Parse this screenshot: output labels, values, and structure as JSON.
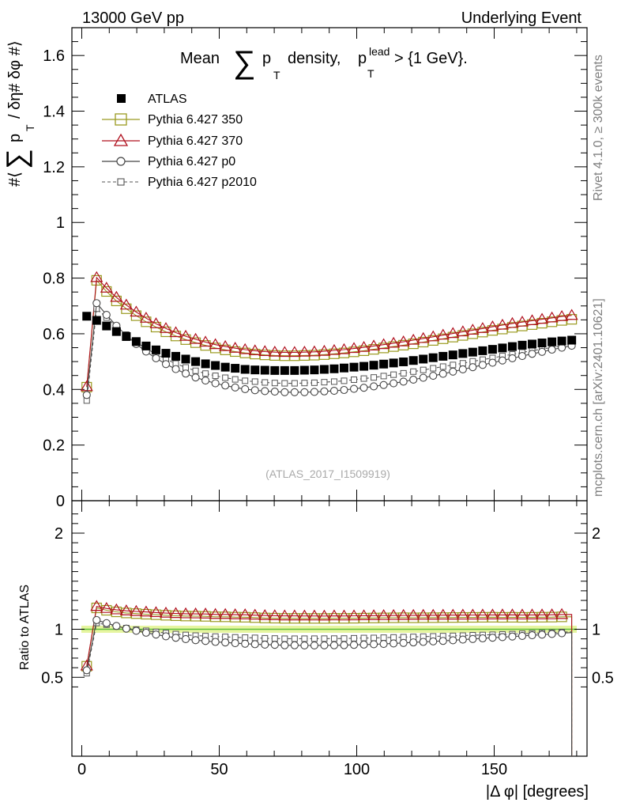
{
  "header": {
    "left": "13000 GeV pp",
    "right": "Underlying Event"
  },
  "side": {
    "rivet": "Rivet 4.1.0, ≥ 300k events",
    "mcplots": "mcplots.cern.ch [arXiv:2401.10621]"
  },
  "chart_data": {
    "type": "line",
    "title": "Mean ∑ p_T density, p_T^lead > {1 GeV}.",
    "title_parts": {
      "pre": "Mean",
      "sum": "∑",
      "p": "p",
      "sub_t": "T",
      "mid": "density,",
      "sup_lead": "lead",
      "end": "> {1 GeV}."
    },
    "ylabel": "#⟨ ∑ p_T / δη# δφ #⟩",
    "ylabel_parts": {
      "a": "#⟨",
      "sum": "∑",
      "p": "p",
      "sub_t": "T",
      "b": "/ δη# δφ #⟩"
    },
    "ratio_ylabel": "Ratio to ATLAS",
    "xlabel": "|Δ φ| [degrees]",
    "reference_label": "(ATLAS_2017_I1509919)",
    "xlim": [
      -4,
      184
    ],
    "ylim": [
      0,
      1.7
    ],
    "ratio_ylim": [
      0.35,
      2.3
    ],
    "x_ticks": [
      "0",
      "50",
      "100",
      "150"
    ],
    "y_ticks": [
      "0",
      "0.2",
      "0.4",
      "0.6",
      "0.8",
      "1",
      "1.2",
      "1.4",
      "1.6"
    ],
    "ratio_ticks": [
      "0.5",
      "1",
      "2"
    ],
    "legend": [
      {
        "key": "atlas",
        "label": "ATLAS"
      },
      {
        "key": "p350",
        "label": "Pythia 6.427 350"
      },
      {
        "key": "p370",
        "label": "Pythia 6.427 370"
      },
      {
        "key": "p0",
        "label": "Pythia 6.427 p0"
      },
      {
        "key": "p2010",
        "label": "Pythia 6.427 p2010"
      }
    ],
    "series_styles": {
      "atlas": {
        "color": "#000000",
        "marker": "square-filled",
        "line": "none"
      },
      "p350": {
        "color": "#9a9a20",
        "marker": "square-open",
        "line": "solid"
      },
      "p370": {
        "color": "#b0101e",
        "marker": "triangle-open",
        "line": "solid"
      },
      "p0": {
        "color": "#444444",
        "marker": "circle-open",
        "line": "solid"
      },
      "p2010": {
        "color": "#555555",
        "marker": "square-open-small",
        "line": "dashed"
      }
    },
    "x": [
      1.8,
      5.4,
      9.0,
      12.6,
      16.2,
      19.8,
      23.4,
      27.0,
      30.6,
      34.2,
      37.8,
      41.4,
      45.0,
      48.6,
      52.2,
      55.8,
      59.4,
      63.0,
      66.6,
      70.2,
      73.8,
      77.4,
      81.0,
      84.6,
      88.2,
      91.8,
      95.4,
      99.0,
      102.6,
      106.2,
      109.8,
      113.4,
      117.0,
      120.6,
      124.2,
      127.8,
      131.4,
      135.0,
      138.6,
      142.2,
      145.8,
      149.4,
      153.0,
      156.6,
      160.2,
      163.8,
      167.4,
      171.0,
      174.6,
      178.2
    ],
    "series": [
      {
        "name": "ATLAS",
        "values": [
          0.663,
          0.648,
          0.628,
          0.608,
          0.59,
          0.572,
          0.556,
          0.542,
          0.53,
          0.519,
          0.509,
          0.5,
          0.492,
          0.486,
          0.48,
          0.476,
          0.472,
          0.47,
          0.469,
          0.468,
          0.468,
          0.468,
          0.469,
          0.47,
          0.472,
          0.474,
          0.477,
          0.48,
          0.483,
          0.487,
          0.491,
          0.495,
          0.499,
          0.504,
          0.509,
          0.514,
          0.519,
          0.524,
          0.529,
          0.534,
          0.539,
          0.544,
          0.549,
          0.554,
          0.559,
          0.563,
          0.567,
          0.571,
          0.574,
          0.577
        ]
      },
      {
        "name": "Pythia 6.427 350",
        "values": [
          0.408,
          0.792,
          0.752,
          0.718,
          0.69,
          0.665,
          0.643,
          0.624,
          0.607,
          0.592,
          0.579,
          0.568,
          0.558,
          0.549,
          0.542,
          0.536,
          0.531,
          0.527,
          0.524,
          0.522,
          0.521,
          0.521,
          0.522,
          0.523,
          0.525,
          0.528,
          0.531,
          0.535,
          0.539,
          0.544,
          0.549,
          0.554,
          0.559,
          0.564,
          0.57,
          0.576,
          0.582,
          0.588,
          0.594,
          0.6,
          0.606,
          0.612,
          0.617,
          0.623,
          0.628,
          0.633,
          0.638,
          0.643,
          0.648,
          0.652
        ]
      },
      {
        "name": "Pythia 6.427 370",
        "values": [
          0.41,
          0.802,
          0.764,
          0.731,
          0.703,
          0.678,
          0.656,
          0.636,
          0.619,
          0.604,
          0.591,
          0.58,
          0.57,
          0.561,
          0.554,
          0.548,
          0.543,
          0.539,
          0.536,
          0.534,
          0.533,
          0.533,
          0.534,
          0.535,
          0.537,
          0.54,
          0.543,
          0.547,
          0.551,
          0.556,
          0.561,
          0.566,
          0.571,
          0.577,
          0.583,
          0.589,
          0.595,
          0.601,
          0.607,
          0.613,
          0.619,
          0.625,
          0.631,
          0.637,
          0.642,
          0.647,
          0.652,
          0.657,
          0.662,
          0.666
        ]
      },
      {
        "name": "Pythia 6.427 p0",
        "values": [
          0.38,
          0.71,
          0.668,
          0.629,
          0.594,
          0.563,
          0.536,
          0.512,
          0.491,
          0.473,
          0.457,
          0.443,
          0.432,
          0.422,
          0.414,
          0.407,
          0.401,
          0.397,
          0.394,
          0.392,
          0.39,
          0.39,
          0.39,
          0.391,
          0.393,
          0.395,
          0.398,
          0.402,
          0.406,
          0.411,
          0.416,
          0.422,
          0.428,
          0.435,
          0.442,
          0.449,
          0.456,
          0.464,
          0.472,
          0.48,
          0.488,
          0.496,
          0.504,
          0.512,
          0.52,
          0.528,
          0.535,
          0.543,
          0.55,
          0.557
        ]
      },
      {
        "name": "Pythia 6.427 p2010",
        "values": [
          0.36,
          0.69,
          0.658,
          0.626,
          0.597,
          0.57,
          0.547,
          0.527,
          0.509,
          0.493,
          0.479,
          0.467,
          0.457,
          0.449,
          0.442,
          0.436,
          0.431,
          0.428,
          0.425,
          0.423,
          0.422,
          0.422,
          0.423,
          0.424,
          0.426,
          0.428,
          0.431,
          0.435,
          0.439,
          0.443,
          0.448,
          0.453,
          0.458,
          0.464,
          0.47,
          0.476,
          0.482,
          0.488,
          0.494,
          0.501,
          0.507,
          0.513,
          0.52,
          0.526,
          0.533,
          0.539,
          0.545,
          0.551,
          0.557,
          0.562
        ]
      }
    ],
    "ratio_note": "lower panel shows each series divided by ATLAS; last bin drops out of range"
  }
}
